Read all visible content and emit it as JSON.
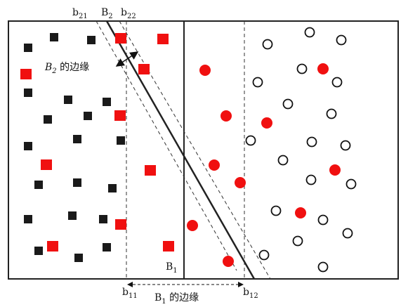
{
  "labels": [
    {
      "base": "b",
      "sub": "21"
    },
    {
      "base": "B",
      "sub": "2"
    },
    {
      "base": "b",
      "sub": "22"
    },
    {
      "base": "B",
      "sub": "2",
      "rest": " 的边缘"
    },
    {
      "base": "B",
      "sub": "1"
    },
    {
      "base": "b",
      "sub": "11"
    },
    {
      "base": "B",
      "sub": "1",
      "rest": " 的边缘"
    },
    {
      "base": "b",
      "sub": "12"
    }
  ]
}
